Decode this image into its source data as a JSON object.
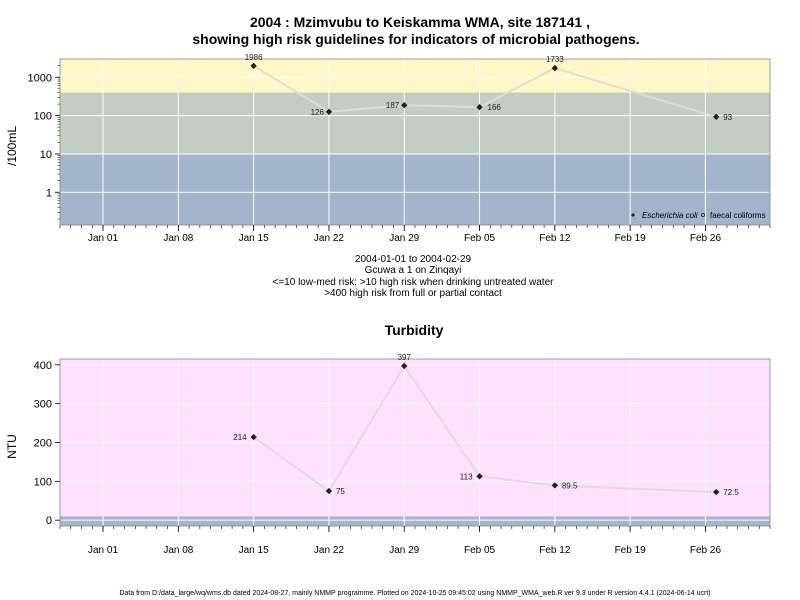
{
  "chart_data": [
    {
      "type": "line",
      "title": "2004 : Mzimvubu to Keiskamma WMA, site 187141 ,",
      "subtitle": "showing high risk guidelines for indicators of microbial pathogens.",
      "ylabel": "/100mL",
      "y_scale": "log",
      "ylim": [
        0.14,
        3000
      ],
      "yticks": [
        1,
        10,
        100,
        1000
      ],
      "ytick_labels": [
        "1",
        "10",
        "100",
        "1000"
      ],
      "x_ticks": [
        "Jan 01",
        "Jan 08",
        "Jan 15",
        "Jan 22",
        "Jan 29",
        "Feb 05",
        "Feb 12",
        "Feb 19",
        "Feb 26"
      ],
      "xlim": [
        "2003-12-28",
        "2004-03-03"
      ],
      "bands": [
        {
          "from": 0.14,
          "to": 10,
          "color": "#a3b4cd"
        },
        {
          "from": 10,
          "to": 400,
          "color": "#c3cdc2"
        },
        {
          "from": 400,
          "to": 3000,
          "color": "#fff8c6"
        }
      ],
      "series": [
        {
          "name": "Escherichia coli",
          "color": "#dddddd",
          "points": [
            {
              "x": "2004-01-15",
              "y": 1986,
              "label": "1986"
            },
            {
              "x": "2004-01-22",
              "y": 126,
              "label": "126"
            },
            {
              "x": "2004-01-29",
              "y": 187,
              "label": "187"
            },
            {
              "x": "2004-02-05",
              "y": 166,
              "label": "166"
            },
            {
              "x": "2004-02-12",
              "y": 1733,
              "label": "1733"
            },
            {
              "x": "2004-02-27",
              "y": 93,
              "label": "93"
            }
          ]
        }
      ],
      "legend": {
        "placement": "bottom-right",
        "entries": [
          "Escherichia coli",
          "faecal coliforms"
        ]
      },
      "notes": [
        "2004-01-01 to 2004-02-29",
        "Gcuwa a 1 on Zinqayi",
        "<=10 low-med risk; >10 high risk when drinking untreated water",
        ">400 high risk from full or partial contact"
      ]
    },
    {
      "type": "line",
      "title": "Turbidity",
      "ylabel": "NTU",
      "y_scale": "linear",
      "ylim": [
        -15,
        415
      ],
      "yticks": [
        0,
        100,
        200,
        300,
        400
      ],
      "ytick_labels": [
        "0",
        "100",
        "200",
        "300",
        "400"
      ],
      "x_ticks": [
        "Jan 01",
        "Jan 08",
        "Jan 15",
        "Jan 22",
        "Jan 29",
        "Feb 05",
        "Feb 12",
        "Feb 19",
        "Feb 26"
      ],
      "xlim": [
        "2003-12-28",
        "2004-03-03"
      ],
      "bands": [
        {
          "from": -15,
          "to": 10,
          "color": "#a3b4cd"
        },
        {
          "from": 10,
          "to": 415,
          "color": "#ffe0ff"
        }
      ],
      "series": [
        {
          "name": "Turbidity",
          "color": "#dddddd",
          "points": [
            {
              "x": "2004-01-15",
              "y": 214,
              "label": "214"
            },
            {
              "x": "2004-01-22",
              "y": 75,
              "label": "75"
            },
            {
              "x": "2004-01-29",
              "y": 397,
              "label": "397"
            },
            {
              "x": "2004-02-05",
              "y": 113,
              "label": "113"
            },
            {
              "x": "2004-02-12",
              "y": 89.5,
              "label": "89.5"
            },
            {
              "x": "2004-02-27",
              "y": 72.5,
              "label": "72.5"
            }
          ]
        }
      ]
    }
  ],
  "footer": "Data from D:/data_large/wq/wms.db dated 2024-08-27, mainly NMMP programme. Plotted on 2024-10-25 09:45:02 using NMMP_WMA_web.R ver 9.3 under R version 4.4.1 (2024-06-14 ucrt)"
}
